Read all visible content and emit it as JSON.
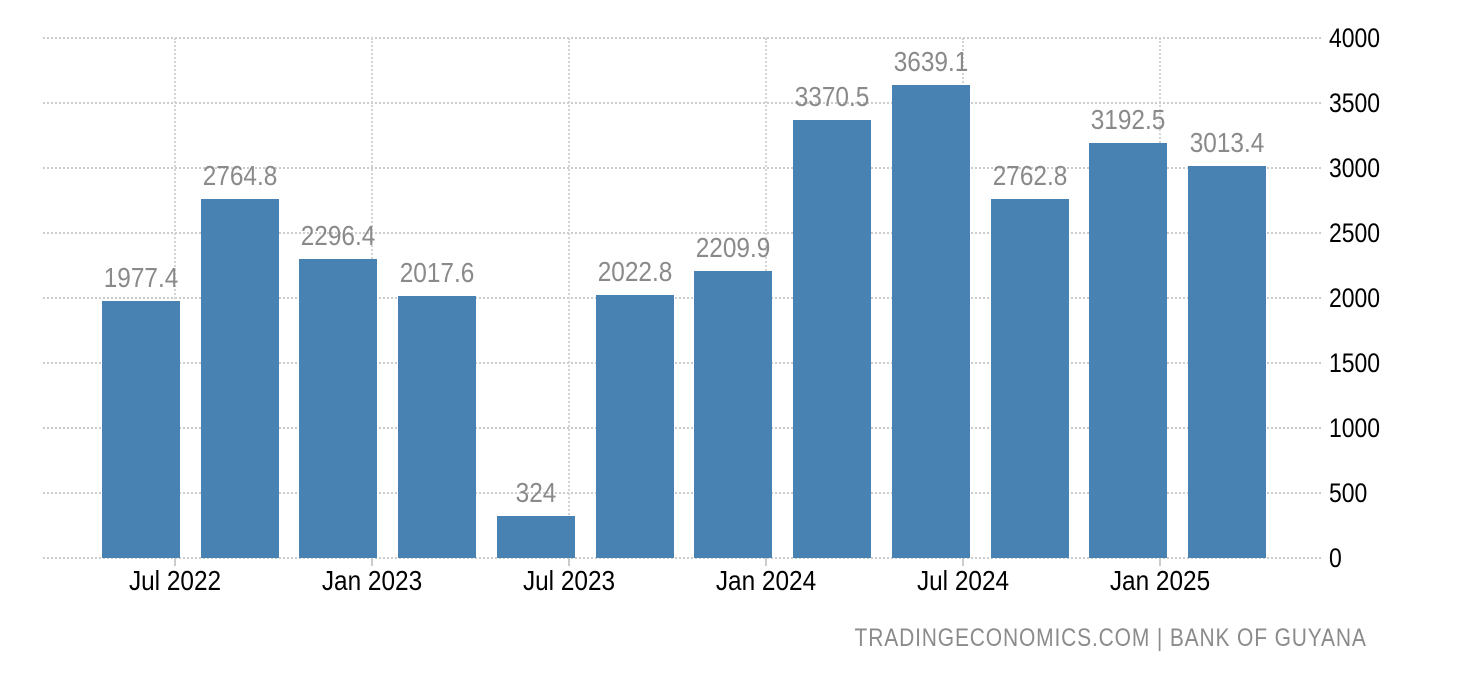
{
  "chart_data": {
    "type": "bar",
    "title": "",
    "series_name": "quarterly-values",
    "values": [
      1977.4,
      2764.8,
      2296.4,
      2017.6,
      324,
      2022.8,
      2209.9,
      3370.5,
      3639.1,
      2762.8,
      3192.5,
      3013.4
    ],
    "bar_labels": [
      "1977.4",
      "2764.8",
      "2296.4",
      "2017.6",
      "324",
      "2022.8",
      "2209.9",
      "3370.5",
      "3639.1",
      "2762.8",
      "3192.5",
      "3013.4"
    ],
    "x_tick_labels": [
      "Jul 2022",
      "Jan 2023",
      "Jul 2023",
      "Jan 2024",
      "Jul 2024",
      "Jan 2025"
    ],
    "y_tick_labels": [
      "0",
      "500",
      "1000",
      "1500",
      "2000",
      "2500",
      "3000",
      "3500",
      "4000"
    ],
    "y_tick_values": [
      0,
      500,
      1000,
      1500,
      2000,
      2500,
      3000,
      3500,
      4000
    ],
    "ylim": [
      0,
      4000
    ],
    "xlabel": "",
    "ylabel": "",
    "y_axis_side": "right",
    "grid": {
      "horizontal": true,
      "vertical": true,
      "style": "dotted"
    },
    "legend": "none",
    "colors": {
      "bar": "#4882B2",
      "value_label": "#8A8A8A",
      "axis_label": "#000000",
      "gridline": "#CCCCCC",
      "background": "#FFFFFF"
    }
  },
  "footer": {
    "text": "TRADINGECONOMICS.COM | BANK OF GUYANA",
    "color": "#8B8B8B"
  }
}
